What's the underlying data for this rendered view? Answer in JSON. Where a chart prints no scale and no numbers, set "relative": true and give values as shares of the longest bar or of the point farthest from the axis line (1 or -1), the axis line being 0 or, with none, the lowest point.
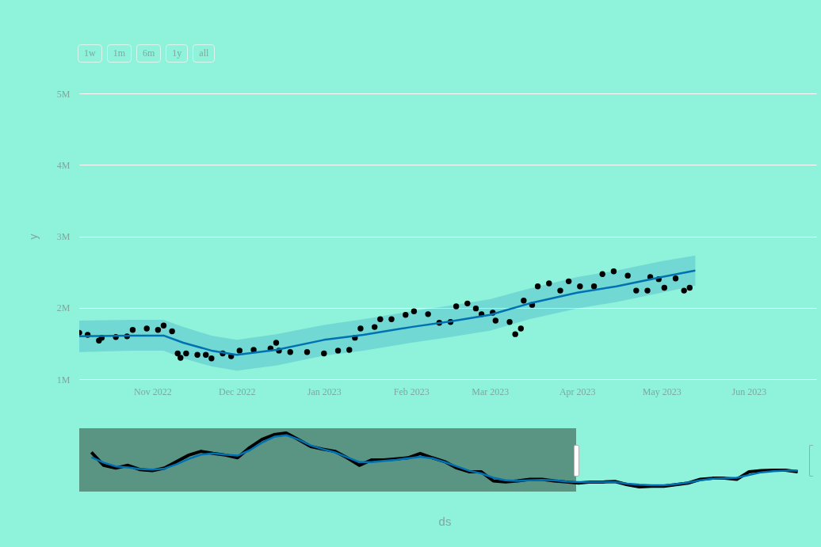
{
  "chart_data": [
    {
      "type": "line",
      "ylabel": "y",
      "annotations": [
        "1w",
        "1m",
        "6m",
        "1y",
        "all"
      ],
      "grid": "y",
      "xlim": [
        "2022-10-06",
        "2023-06-25"
      ],
      "xticks": [
        {
          "value": "2022-11-01",
          "label": "Nov 2022"
        },
        {
          "value": "2022-12-01",
          "label": "Dec 2022"
        },
        {
          "value": "2023-01-01",
          "label": "Jan 2023"
        },
        {
          "value": "2023-02-01",
          "label": "Feb 2023"
        },
        {
          "value": "2023-03-01",
          "label": "Mar 2023"
        },
        {
          "value": "2023-04-01",
          "label": "Apr 2023"
        },
        {
          "value": "2023-05-01",
          "label": "May 2023"
        },
        {
          "value": "2023-06-01",
          "label": "Jun 2023"
        }
      ],
      "ylim": [
        1000000,
        5000000
      ],
      "yticks": [
        {
          "value": 1000000,
          "label": "1M"
        },
        {
          "value": 2000000,
          "label": "2M"
        },
        {
          "value": 3000000,
          "label": "3M"
        },
        {
          "value": 4000000,
          "label": "4M"
        },
        {
          "value": 5000000,
          "label": "5M"
        }
      ],
      "series": [
        {
          "type": "scatter",
          "color": "#000000",
          "x": [
            "2022-10-06",
            "2022-10-09",
            "2022-10-13",
            "2022-10-14",
            "2022-10-19",
            "2022-10-23",
            "2022-10-25",
            "2022-10-30",
            "2022-11-03",
            "2022-11-05",
            "2022-11-08",
            "2022-11-10",
            "2022-11-11",
            "2022-11-13",
            "2022-11-17",
            "2022-11-20",
            "2022-11-22",
            "2022-11-26",
            "2022-11-29",
            "2022-12-02",
            "2022-12-07",
            "2022-12-13",
            "2022-12-15",
            "2022-12-16",
            "2022-12-20",
            "2022-12-26",
            "2023-01-01",
            "2023-01-06",
            "2023-01-10",
            "2023-01-12",
            "2023-01-14",
            "2023-01-19",
            "2023-01-21",
            "2023-01-25",
            "2023-01-30",
            "2023-02-02",
            "2023-02-07",
            "2023-02-11",
            "2023-02-15",
            "2023-02-17",
            "2023-02-21",
            "2023-02-24",
            "2023-02-26",
            "2023-03-02",
            "2023-03-03",
            "2023-03-08",
            "2023-03-10",
            "2023-03-12",
            "2023-03-13",
            "2023-03-16",
            "2023-03-18",
            "2023-03-22",
            "2023-03-26",
            "2023-03-29",
            "2023-04-02",
            "2023-04-07",
            "2023-04-10",
            "2023-04-14",
            "2023-04-19",
            "2023-04-22",
            "2023-04-26",
            "2023-04-27",
            "2023-04-30",
            "2023-05-02",
            "2023-05-06",
            "2023-05-09",
            "2023-05-11"
          ],
          "values": [
            1650000,
            1620000,
            1540000,
            1580000,
            1590000,
            1600000,
            1690000,
            1710000,
            1690000,
            1750000,
            1670000,
            1360000,
            1300000,
            1360000,
            1340000,
            1340000,
            1290000,
            1360000,
            1320000,
            1400000,
            1410000,
            1430000,
            1510000,
            1400000,
            1380000,
            1380000,
            1360000,
            1400000,
            1410000,
            1580000,
            1710000,
            1730000,
            1840000,
            1840000,
            1900000,
            1950000,
            1910000,
            1790000,
            1800000,
            2020000,
            2060000,
            1990000,
            1910000,
            1930000,
            1820000,
            1800000,
            1630000,
            1710000,
            2100000,
            2040000,
            2300000,
            2340000,
            2240000,
            2370000,
            2300000,
            2300000,
            2470000,
            2510000,
            2450000,
            2240000,
            2240000,
            2430000,
            2400000,
            2280000,
            2410000,
            2240000,
            2280000
          ]
        },
        {
          "color": "#0072b2",
          "x": [
            "2022-10-06",
            "2022-10-25",
            "2022-11-05",
            "2022-11-12",
            "2022-11-22",
            "2022-12-01",
            "2022-12-15",
            "2023-01-01",
            "2023-01-15",
            "2023-02-01",
            "2023-02-15",
            "2023-03-01",
            "2023-03-15",
            "2023-04-01",
            "2023-04-15",
            "2023-05-01",
            "2023-05-13"
          ],
          "values": [
            1600000,
            1610000,
            1610000,
            1510000,
            1400000,
            1340000,
            1410000,
            1550000,
            1620000,
            1730000,
            1810000,
            1900000,
            2060000,
            2210000,
            2300000,
            2430000,
            2520000
          ],
          "lower": [
            1380000,
            1400000,
            1400000,
            1290000,
            1180000,
            1120000,
            1190000,
            1330000,
            1400000,
            1510000,
            1590000,
            1680000,
            1840000,
            1990000,
            2080000,
            2210000,
            2310000
          ],
          "upper": [
            1820000,
            1830000,
            1830000,
            1730000,
            1610000,
            1550000,
            1630000,
            1760000,
            1840000,
            1950000,
            2030000,
            2120000,
            2270000,
            2430000,
            2520000,
            2650000,
            2730000
          ]
        }
      ]
    },
    {
      "type": "line",
      "relative": true,
      "xlabel": "ds",
      "categories": [
        null,
        null,
        null,
        null,
        null,
        null,
        null,
        null,
        null,
        null,
        null,
        null,
        null,
        null,
        null,
        null,
        null,
        null,
        null,
        null,
        null,
        null,
        null,
        null,
        null,
        null,
        null,
        null,
        null,
        null,
        null,
        null,
        null,
        null,
        null,
        null,
        null,
        null,
        null,
        null,
        null,
        null,
        null,
        null,
        null,
        null,
        null,
        null,
        null,
        null,
        null,
        null,
        null,
        null,
        null,
        null,
        null,
        null,
        null
      ],
      "series": [
        {
          "color": "#000000",
          "values": [
            0.64,
            0.4,
            0.35,
            0.4,
            0.32,
            0.3,
            0.35,
            0.47,
            0.59,
            0.66,
            0.62,
            0.59,
            0.54,
            0.73,
            0.88,
            0.97,
            1.0,
            0.88,
            0.75,
            0.7,
            0.66,
            0.54,
            0.4,
            0.5,
            0.5,
            0.52,
            0.54,
            0.62,
            0.54,
            0.47,
            0.35,
            0.28,
            0.28,
            0.11,
            0.09,
            0.11,
            0.14,
            0.14,
            0.11,
            0.09,
            0.07,
            0.09,
            0.09,
            0.1,
            0.04,
            0.0,
            0.01,
            0.01,
            0.04,
            0.07,
            0.14,
            0.16,
            0.16,
            0.14,
            0.28,
            0.3,
            0.31,
            0.31,
            0.28
          ]
        },
        {
          "color": "#0072b2",
          "values": [
            0.55,
            0.45,
            0.38,
            0.36,
            0.33,
            0.32,
            0.34,
            0.42,
            0.52,
            0.6,
            0.62,
            0.6,
            0.58,
            0.68,
            0.82,
            0.93,
            0.96,
            0.88,
            0.77,
            0.7,
            0.64,
            0.55,
            0.46,
            0.46,
            0.48,
            0.5,
            0.53,
            0.56,
            0.53,
            0.46,
            0.38,
            0.3,
            0.25,
            0.17,
            0.12,
            0.11,
            0.12,
            0.13,
            0.12,
            0.1,
            0.09,
            0.09,
            0.09,
            0.09,
            0.06,
            0.04,
            0.03,
            0.03,
            0.05,
            0.08,
            0.12,
            0.15,
            0.16,
            0.17,
            0.22,
            0.27,
            0.29,
            0.3,
            0.3
          ]
        }
      ]
    }
  ]
}
